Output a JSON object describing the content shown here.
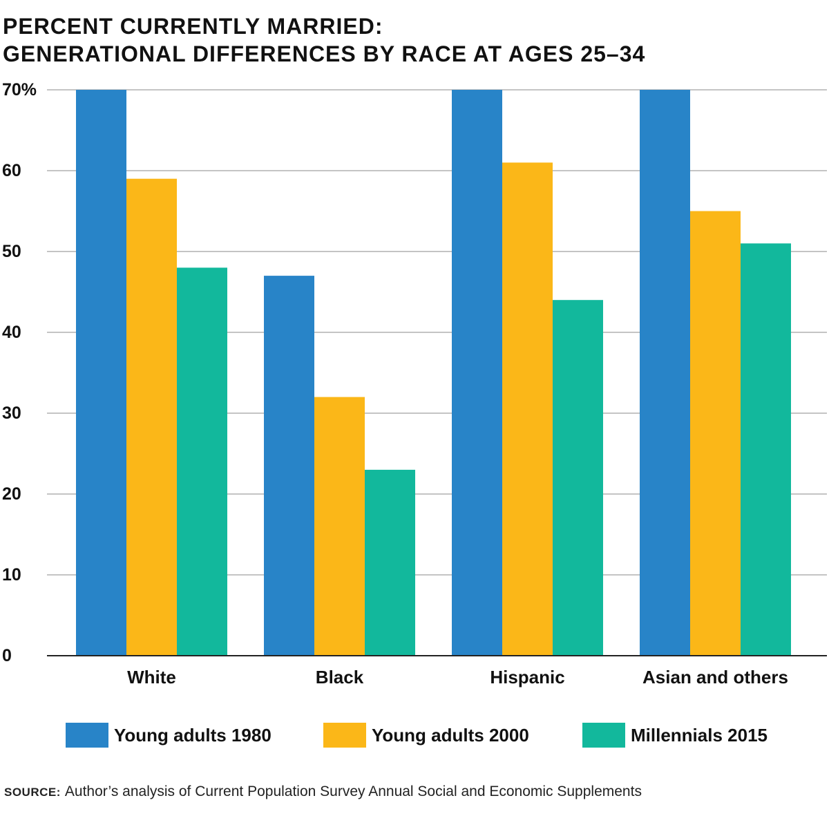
{
  "title_line1": "PERCENT CURRENTLY MARRIED:",
  "title_line2": "GENERATIONAL DIFFERENCES BY RACE AT AGES 25–34",
  "source_lead": "SOURCE:",
  "source_text": "Author’s analysis of Current Population Survey Annual Social and Economic Supplements",
  "chart_data": {
    "type": "bar",
    "title": "PERCENT CURRENTLY MARRIED: GENERATIONAL DIFFERENCES BY RACE AT AGES 25–34",
    "xlabel": "",
    "ylabel": "",
    "categories": [
      "White",
      "Black",
      "Hispanic",
      "Asian and others"
    ],
    "series": [
      {
        "name": "Young adults 1980",
        "color": "#2884c8",
        "values": [
          70,
          47,
          70,
          70
        ]
      },
      {
        "name": "Young adults 2000",
        "color": "#fbb718",
        "values": [
          59,
          32,
          61,
          55
        ]
      },
      {
        "name": "Millennials 2015",
        "color": "#12b89c",
        "values": [
          48,
          23,
          44,
          51
        ]
      }
    ],
    "ylim": [
      0,
      70
    ],
    "yticks": [
      0,
      10,
      20,
      30,
      40,
      50,
      60,
      70
    ],
    "ytick_labels": [
      "0",
      "10",
      "20",
      "30",
      "40",
      "50",
      "60",
      "70%"
    ],
    "grid": true,
    "legend_position": "bottom"
  }
}
